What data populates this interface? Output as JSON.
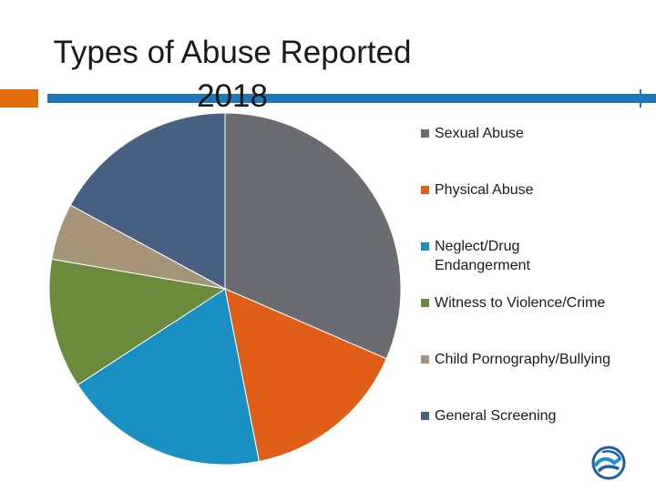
{
  "title_line1": "Types of Abuse Reported",
  "title_line2": "2018",
  "chart_data": {
    "type": "pie",
    "title": "Types of Abuse Reported 2018",
    "categories": [
      "Sexual Abuse",
      "Physical Abuse",
      "Neglect/Drug Endangerment",
      "Witness to Violence/Crime",
      "Child Pornography/Bullying",
      "General Screening"
    ],
    "values": [
      31.5,
      15.4,
      18.9,
      11.9,
      5.2,
      17.1
    ],
    "colors": [
      "#6b6b72",
      "#e05e17",
      "#1a8fc4",
      "#6b8b3c",
      "#a69478",
      "#476082"
    ],
    "legend_position": "right",
    "start_angle_deg": 0,
    "direction": "clockwise"
  },
  "legend": {
    "items": [
      {
        "label": "Sexual Abuse",
        "color": "#6b6b72"
      },
      {
        "label": "Physical Abuse",
        "color": "#e05e17"
      },
      {
        "label": "Neglect/Drug Endangerment",
        "color": "#1a8fc4"
      },
      {
        "label": "Witness to Violence/Crime",
        "color": "#6b8b3c"
      },
      {
        "label": "Child Pornography/Bullying",
        "color": "#a69478"
      },
      {
        "label": "General Screening",
        "color": "#476082"
      }
    ]
  },
  "logo_icon": "handshake-globe-icon"
}
